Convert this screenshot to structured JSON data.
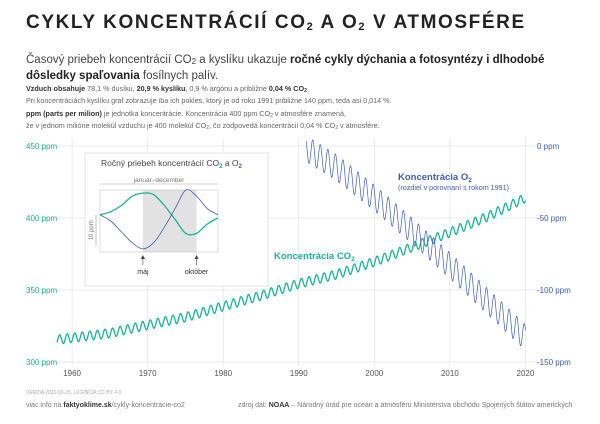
{
  "title": {
    "main": "CYKLY KONCENTRÁCIÍ CO",
    "sub1": "2",
    "mid": " A O",
    "sub2": "2",
    "end": " V ATMOSFÉRE"
  },
  "lead": {
    "t1": "Časový priebeh koncentrácií CO",
    "s1": "2",
    "t2": " a kyslíku ukazuje ",
    "bold": "ročné cykly dýchania a fotosyntézy i dlhodobé dôsledky spaľovania",
    "t3": " fosílnych palív."
  },
  "note1": {
    "head": "Vzduch obsahuje",
    "a": " 78,1 % dusíku, ",
    "o2": "20,9 % kyslíku",
    "b": ", 0,9 % argónu a približne ",
    "co2": "0,04 % CO",
    "co2sub": "2",
    "line2": "Pri koncentráciách kyslíku graf zobrazuje iba ich pokles, ktorý je od roku 1991 približne 140 ppm, teda asi 0,014 %."
  },
  "note2": {
    "head": "ppm (parts per milion)",
    "a": " je jednotka koncentrácie. Koncentrácia 400 ppm CO",
    "asub": "2",
    "b": " v atmosfére znamená,",
    "c": "že v jednom milióne molekúl vzduchu je 400 molekúl CO",
    "csub": "2",
    "d": ", čo zodpovedá koncentrácii 0,04 % CO",
    "dsub": "2",
    "e": " v atmosfére."
  },
  "footer": {
    "link_prefix": "viac info na ",
    "link": "faktyoklime.sk",
    "link_suffix": "/cykly-koncentracie-co2",
    "source_prefix": "zdroj dát: ",
    "source_bold": "NOAA",
    "source_rest": " – Národný úrad pre oceán a atmosféru Ministerstva obchodu Spojených štátov amerických",
    "meta": "VERZIA 2021-03-25, LICENCIA CC BY 4.0"
  },
  "colors": {
    "co2": "#19b497",
    "o2": "#3f5fb4",
    "grid": "#e3e3e3",
    "inset_shade": "#e2e2e2"
  },
  "chart_data": [
    {
      "type": "line",
      "title": "",
      "x_ticks": [
        1960,
        1970,
        1980,
        1990,
        2000,
        2010,
        2020
      ],
      "xlim": [
        1958,
        2021
      ],
      "y_left": {
        "ticks": [
          300,
          350,
          400,
          450
        ],
        "tick_labels": [
          "300 ppm",
          "350 ppm",
          "400 ppm",
          "450 ppm"
        ],
        "ylim": [
          300,
          450
        ]
      },
      "y_right": {
        "ticks": [
          0,
          -50,
          -100,
          -150
        ],
        "tick_labels": [
          "0 ppm",
          "-50 ppm",
          "-100 ppm",
          "-150 ppm"
        ],
        "ylim": [
          -150,
          0
        ]
      },
      "grid": true,
      "series": [
        {
          "name": "Koncentrácia CO2",
          "label": "Koncentrácia CO",
          "label_sub": "2",
          "axis": "left",
          "seasonal_amplitude_ppm": 3.2,
          "trend": {
            "x": [
              1958,
              1965,
              1970,
              1975,
              1980,
              1985,
              1990,
              1995,
              2000,
              2005,
              2010,
              2015,
              2020
            ],
            "y": [
              315.5,
              320.0,
              325.7,
              331.1,
              338.7,
              346.1,
              354.4,
              360.8,
              369.6,
              379.8,
              389.9,
              401.0,
              414.0
            ]
          }
        },
        {
          "name": "Koncentrácia O2",
          "label": "Koncentrácia O",
          "label_sub": "2",
          "sublabel": "(rozdiel v porovnaní s rokom 1991)",
          "axis": "right",
          "seasonal_amplitude_ppm": 9,
          "trend": {
            "x": [
              1991,
              1995,
              2000,
              2005,
              2010,
              2015,
              2020
            ],
            "y": [
              -2,
              -15,
              -36,
              -59,
              -83,
              -108,
              -133
            ]
          }
        }
      ]
    },
    {
      "type": "line",
      "title": "Ročný priebeh koncentrácií CO",
      "title_sub1": "2",
      "title_mid": " a O",
      "title_sub2": "2",
      "span_label": "január–december",
      "scale_label": "10 ppm",
      "markers": [
        "máj",
        "október"
      ],
      "x": [
        1,
        2,
        3,
        4,
        5,
        6,
        7,
        8,
        9,
        10,
        11,
        12
      ],
      "series": [
        {
          "name": "CO2",
          "values": [
            4.0,
            5.0,
            7.0,
            10.0,
            11.0,
            10.5,
            7.0,
            2.5,
            -2.0,
            -2.0,
            1.0,
            3.0
          ]
        },
        {
          "name": "O2",
          "values": [
            4.0,
            2.0,
            -1.5,
            -5.0,
            -7.0,
            -5.0,
            0.0,
            6.0,
            12.0,
            10.0,
            6.0,
            4.0
          ]
        }
      ]
    }
  ]
}
